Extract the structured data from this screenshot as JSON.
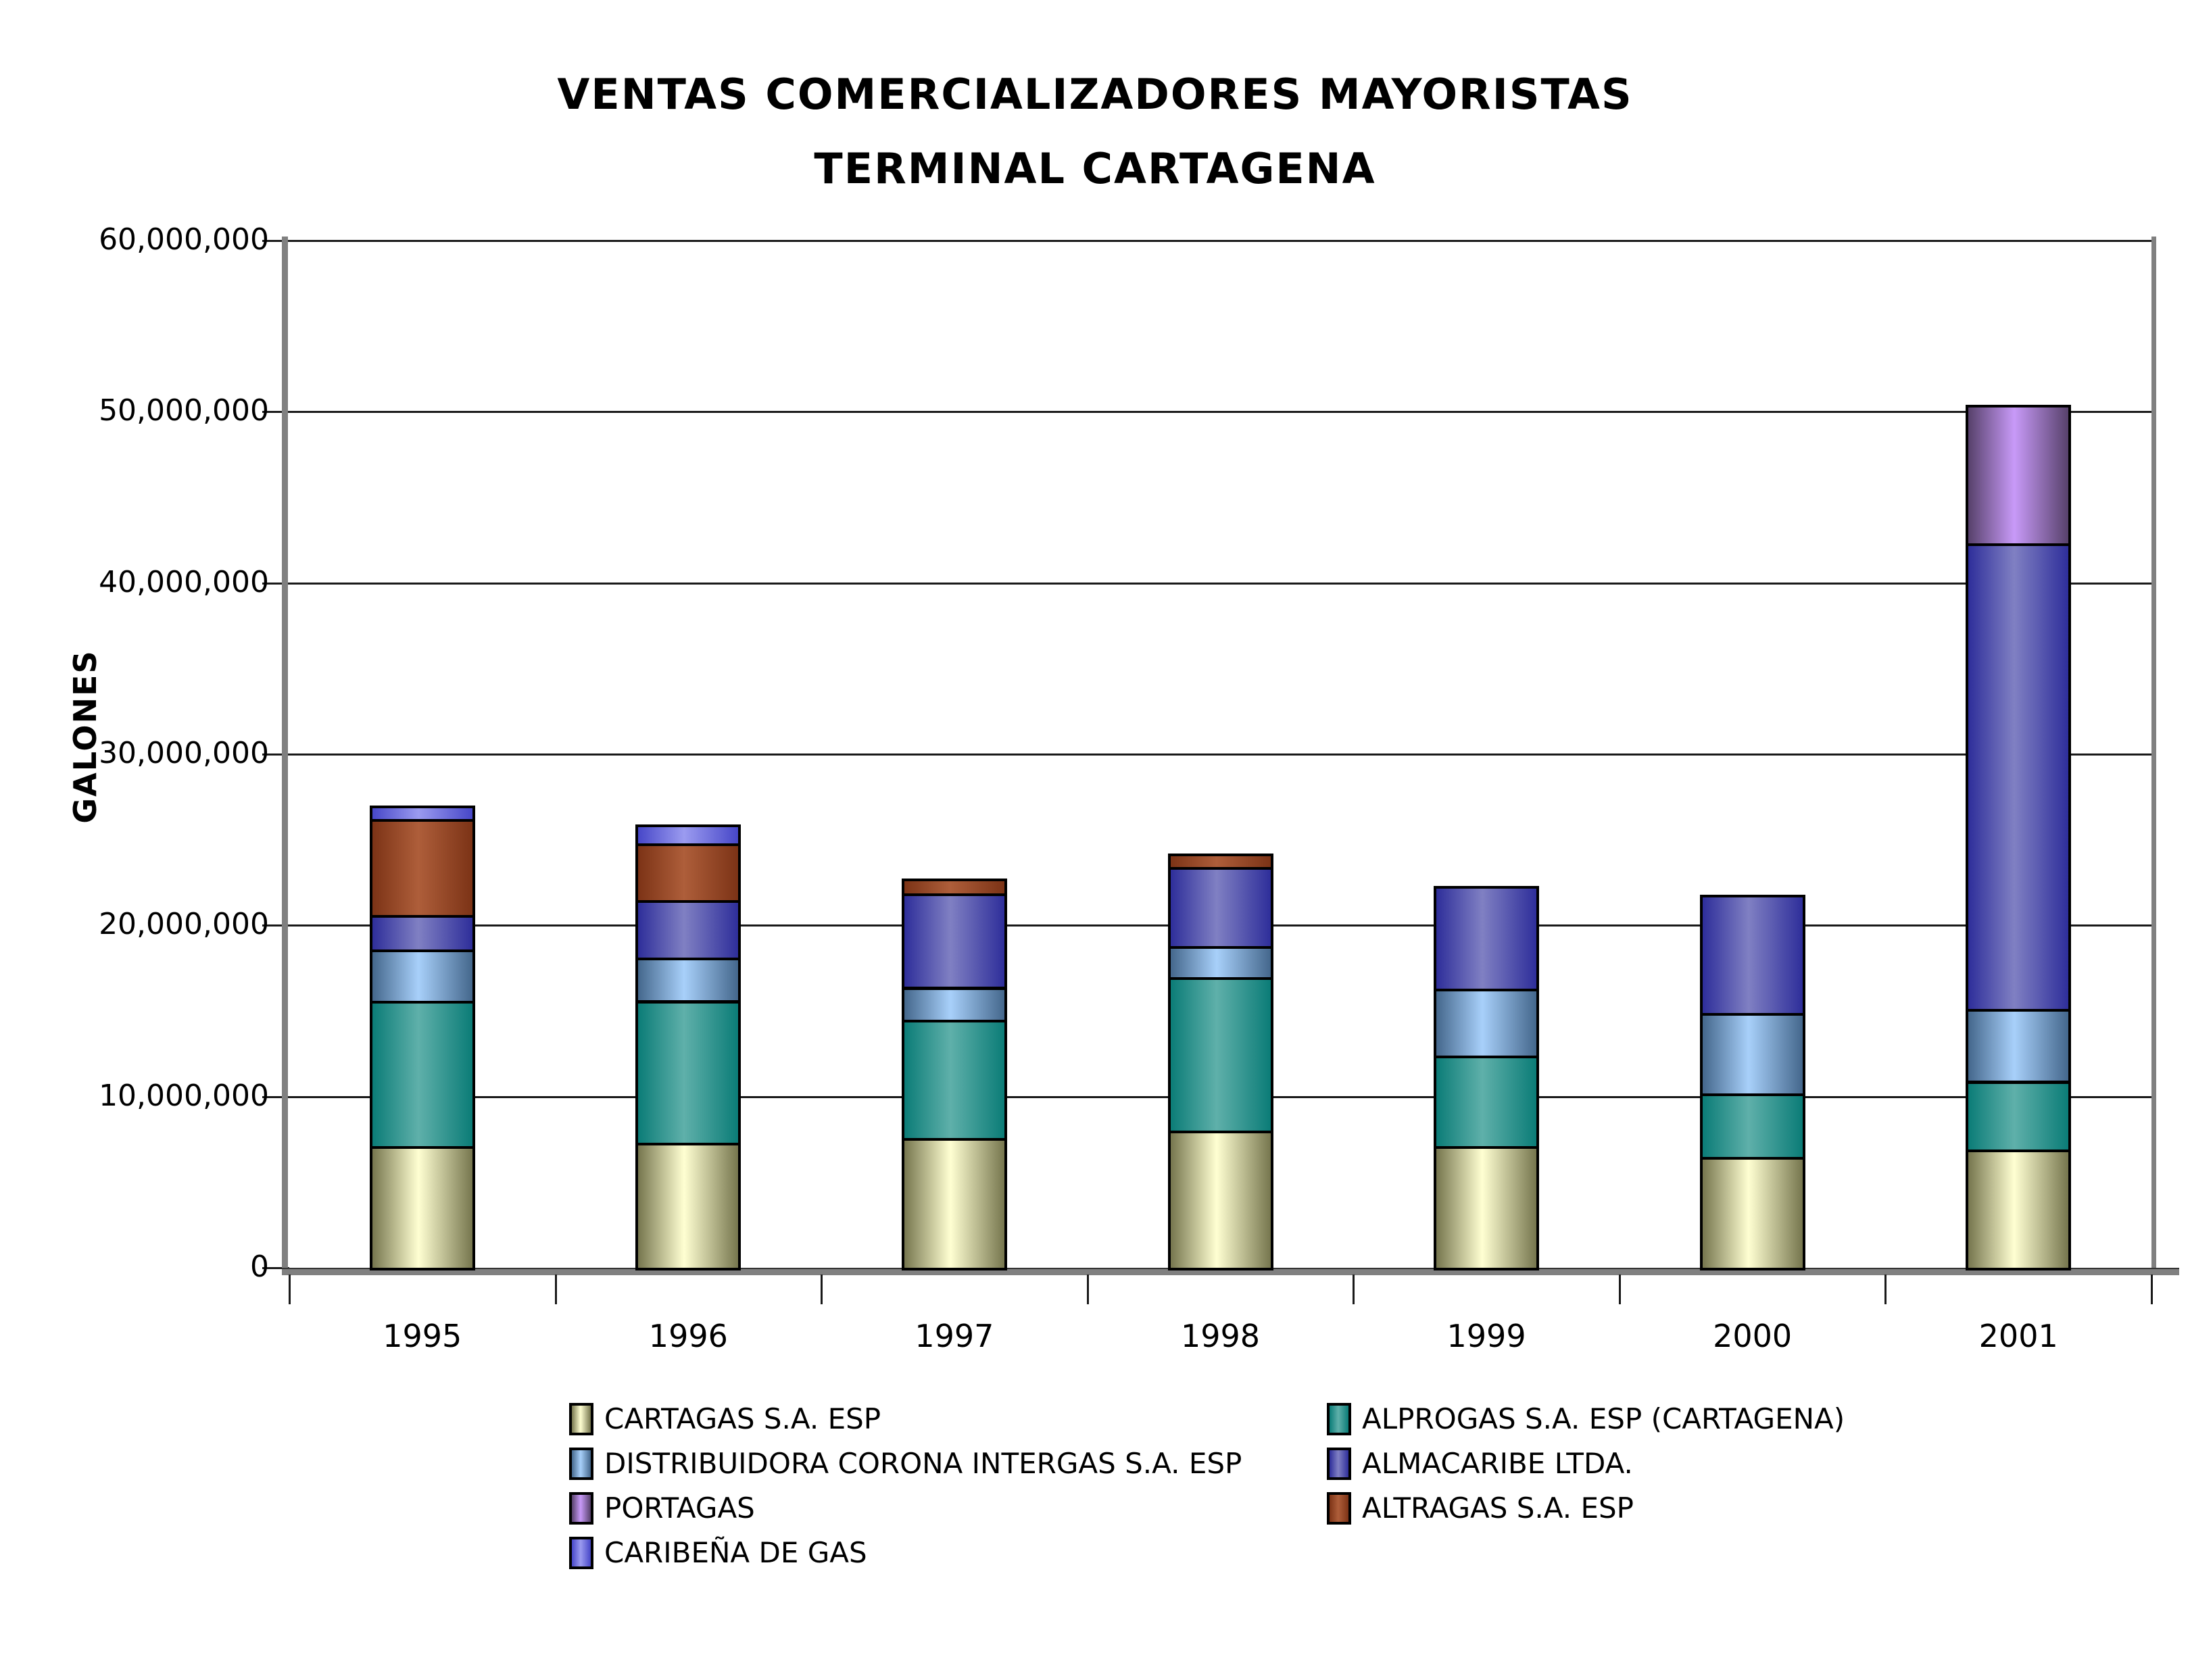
{
  "title": {
    "line1": "VENTAS COMERCIALIZADORES MAYORISTAS",
    "line2": "TERMINAL CARTAGENA"
  },
  "y_axis": {
    "label": "GALONES",
    "tick_labels": [
      "0",
      "10,000,000",
      "20,000,000",
      "30,000,000",
      "40,000,000",
      "50,000,000",
      "60,000,000"
    ],
    "tick_step": 10000000,
    "max": 60000000
  },
  "x_axis": {
    "categories": [
      "1995",
      "1996",
      "1997",
      "1998",
      "1999",
      "2000",
      "2001"
    ]
  },
  "colors": {
    "background": "#FFFFFF",
    "gridline": "#1A1A1A",
    "axis_wall": "#808080",
    "segment_border": "#000000"
  },
  "chart_data": {
    "type": "bar",
    "stacked": true,
    "title": "VENTAS COMERCIALIZADORES MAYORISTAS TERMINAL CARTAGENA",
    "xlabel": "",
    "ylabel": "GALONES",
    "ylim": [
      0,
      60000000
    ],
    "grid": true,
    "legend_position": "bottom",
    "categories": [
      "1995",
      "1996",
      "1997",
      "1998",
      "1999",
      "2000",
      "2001"
    ],
    "series": [
      {
        "name": "CARTAGAS S.A. ESP",
        "color_center": "#FFFFD2",
        "color_edge": "#76764E",
        "values": [
          7100000,
          7300000,
          7600000,
          8000000,
          7100000,
          6500000,
          6900000
        ]
      },
      {
        "name": "ALPROGAS S.A. ESP (CARTAGENA)",
        "color_center": "#5FB0AA",
        "color_edge": "#0B7C77",
        "values": [
          8500000,
          8300000,
          6900000,
          9000000,
          5300000,
          3700000,
          4000000
        ]
      },
      {
        "name": "DISTRIBUIDORA CORONA INTERGAS S.A. ESP",
        "color_center": "#A8D0FA",
        "color_edge": "#44678C",
        "values": [
          3000000,
          2500000,
          1900000,
          1800000,
          3900000,
          4700000,
          4200000
        ]
      },
      {
        "name": "ALMACARIBE LTDA.",
        "color_center": "#8080C3",
        "color_edge": "#2E2E9A",
        "values": [
          2000000,
          3400000,
          5500000,
          4600000,
          6000000,
          6900000,
          27200000
        ]
      },
      {
        "name": "PORTAGAS",
        "color_center": "#C89AF8",
        "color_edge": "#57416B",
        "values": [
          0,
          0,
          0,
          0,
          0,
          0,
          8100000
        ]
      },
      {
        "name": "ALTRAGAS S.A. ESP",
        "color_center": "#AE5E3A",
        "color_edge": "#7C3316",
        "values": [
          5600000,
          3300000,
          850000,
          800000,
          0,
          0,
          0
        ]
      },
      {
        "name": "CARIBEÑA DE GAS",
        "color_center": "#9B9BF0",
        "color_edge": "#4747C8",
        "values": [
          800000,
          1100000,
          0,
          0,
          0,
          0,
          0
        ]
      }
    ]
  },
  "legend": {
    "left_column": [
      "CARTAGAS S.A. ESP",
      "DISTRIBUIDORA CORONA INTERGAS S.A. ESP",
      "PORTAGAS",
      "CARIBEÑA DE GAS"
    ],
    "right_column": [
      "ALPROGAS S.A. ESP (CARTAGENA)",
      "ALMACARIBE LTDA.",
      "ALTRAGAS S.A. ESP"
    ]
  }
}
